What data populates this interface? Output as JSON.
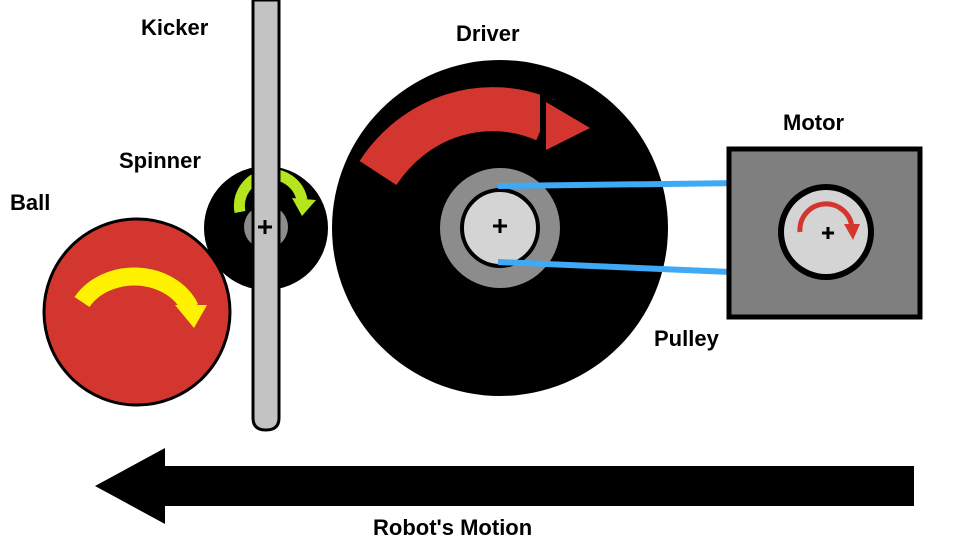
{
  "labels": {
    "kicker": "Kicker",
    "driver": "Driver",
    "motor": "Motor",
    "spinner": "Spinner",
    "ball": "Ball",
    "pulley": "Pulley",
    "motion": "Robot's Motion"
  },
  "colors": {
    "black": "#000000",
    "ball_red": "#d3362f",
    "arrow_red": "#d3362f",
    "arrow_yellow": "#fff200",
    "spinner_arrow": "#b5e61d",
    "kicker_gray": "#c3c3c3",
    "hub_gray": "#c3c3c3",
    "hub_light": "#d4d4d4",
    "motor_gray": "#7f7f7f",
    "belt_blue": "#3fa9f5"
  },
  "icons": [
    "plus-marker-icon",
    "rotation-arrow-icon",
    "motion-arrow-icon"
  ]
}
